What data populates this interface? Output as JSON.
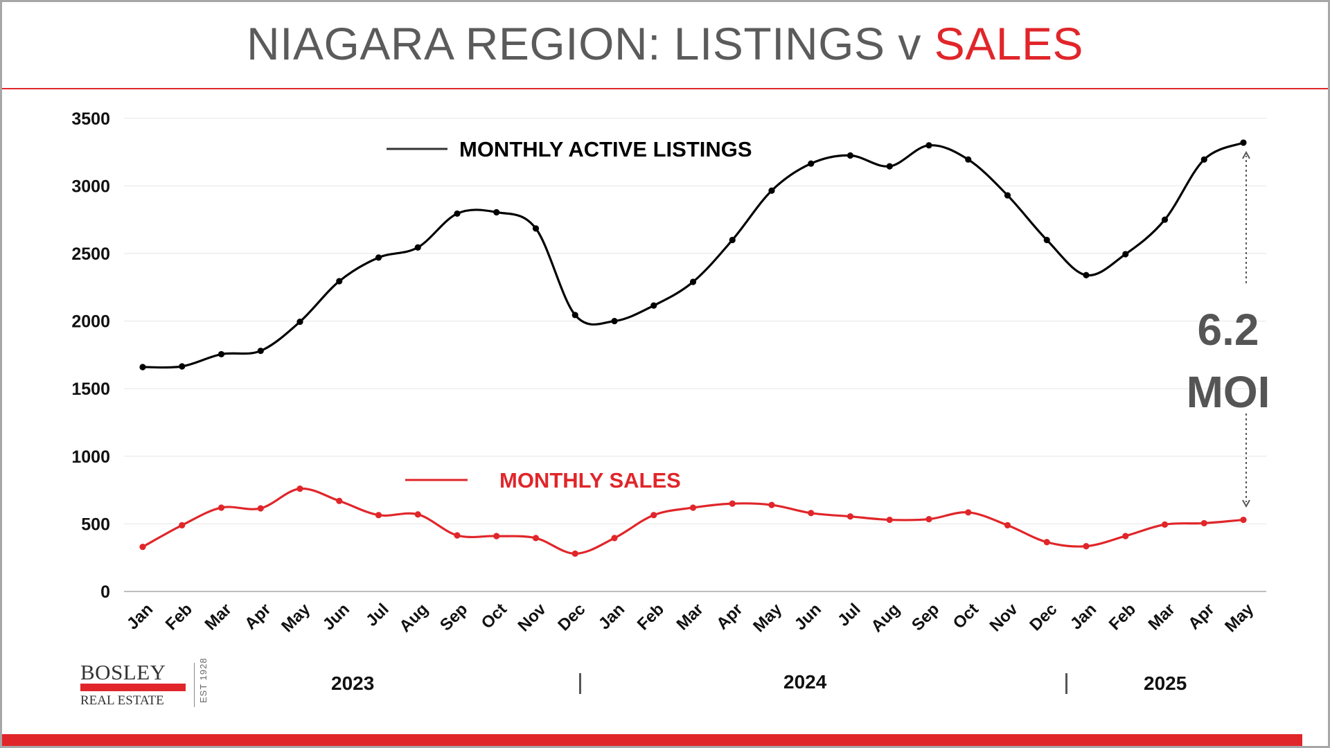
{
  "title": {
    "prefix": "NIAGARA REGION: LISTINGS v ",
    "accent": "SALES"
  },
  "colors": {
    "listings": "#000000",
    "sales": "#e0262a",
    "accent": "#e0262a",
    "title_gray": "#5b5b5b",
    "moi_gray": "#555555"
  },
  "annotation": {
    "line1": "6.2",
    "line2": "MOI"
  },
  "years": {
    "y2023": "2023",
    "y2024": "2024",
    "y2025": "2025"
  },
  "logo": {
    "brand": "BOSLEY",
    "sub": "REAL ESTATE",
    "est": "EST 1928"
  },
  "chart_data": {
    "type": "line",
    "title": "NIAGARA REGION: LISTINGS v SALES",
    "categories": [
      "Jan",
      "Feb",
      "Mar",
      "Apr",
      "May",
      "Jun",
      "Jul",
      "Aug",
      "Sep",
      "Oct",
      "Nov",
      "Dec",
      "Jan",
      "Feb",
      "Mar",
      "Apr",
      "May",
      "Jun",
      "Jul",
      "Aug",
      "Sep",
      "Oct",
      "Nov",
      "Dec",
      "Jan",
      "Feb",
      "Mar",
      "Apr",
      "May"
    ],
    "y_ticks": [
      "0",
      "500",
      "1000",
      "1500",
      "2000",
      "2500",
      "3000",
      "3500"
    ],
    "ylim": [
      0,
      3500
    ],
    "grid": true,
    "series": [
      {
        "name": "MONTHLY ACTIVE LISTINGS",
        "color": "#000000",
        "values": [
          1660,
          1665,
          1755,
          1780,
          1995,
          2295,
          2470,
          2545,
          2795,
          2805,
          2685,
          2045,
          2000,
          2115,
          2290,
          2600,
          2965,
          3165,
          3225,
          3145,
          3300,
          3195,
          2930,
          2600,
          2340,
          2495,
          2750,
          3195,
          3320
        ]
      },
      {
        "name": "MONTHLY SALES",
        "color": "#e0262a",
        "values": [
          330,
          490,
          620,
          615,
          760,
          670,
          565,
          570,
          415,
          410,
          395,
          280,
          395,
          565,
          620,
          650,
          640,
          580,
          555,
          530,
          535,
          585,
          490,
          365,
          335,
          410,
          495,
          505,
          530
        ]
      }
    ]
  }
}
